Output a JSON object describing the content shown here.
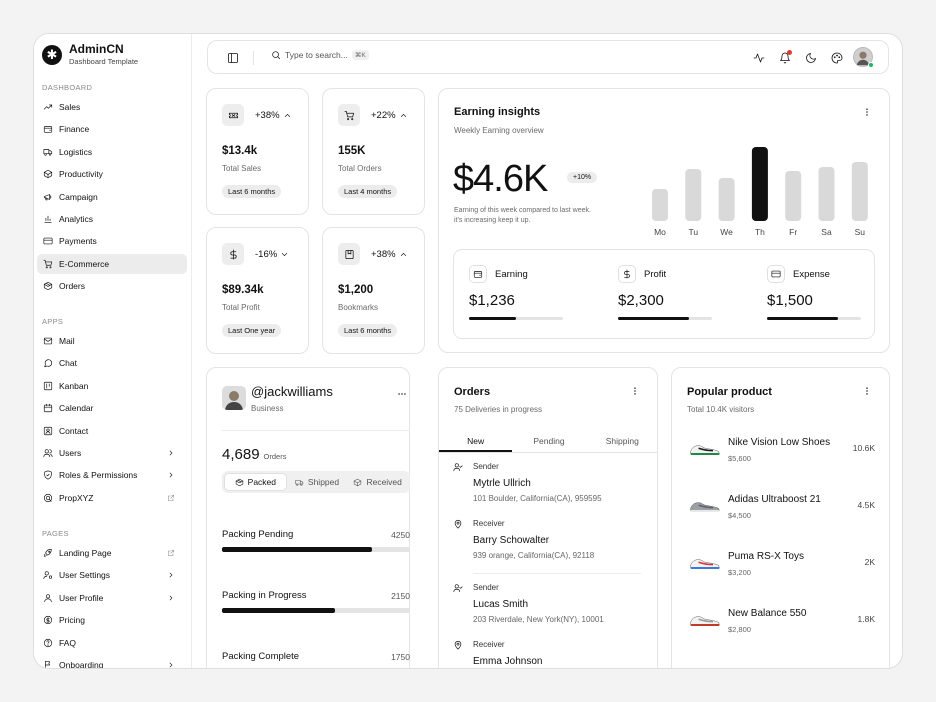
{
  "brand": {
    "name": "AdminCN",
    "subtitle": "Dashboard Template"
  },
  "sidebar": {
    "dashboard_label": "DASHBOARD",
    "dashboard_items": [
      {
        "label": "Sales",
        "icon": "trend-icon"
      },
      {
        "label": "Finance",
        "icon": "wallet-icon"
      },
      {
        "label": "Logistics",
        "icon": "truck-icon"
      },
      {
        "label": "Productivity",
        "icon": "box-icon"
      },
      {
        "label": "Campaign",
        "icon": "megaphone-icon"
      },
      {
        "label": "Analytics",
        "icon": "chart-icon"
      },
      {
        "label": "Payments",
        "icon": "card-icon"
      },
      {
        "label": "E-Commerce",
        "icon": "cart-icon",
        "active": true
      },
      {
        "label": "Orders",
        "icon": "package-icon"
      }
    ],
    "apps_label": "APPS",
    "apps_items": [
      {
        "label": "Mail",
        "icon": "mail-icon"
      },
      {
        "label": "Chat",
        "icon": "chat-icon"
      },
      {
        "label": "Kanban",
        "icon": "kanban-icon"
      },
      {
        "label": "Calendar",
        "icon": "calendar-icon"
      },
      {
        "label": "Contact",
        "icon": "contact-icon"
      },
      {
        "label": "Users",
        "icon": "users-icon",
        "chevron": true
      },
      {
        "label": "Roles & Permissions",
        "icon": "shield-icon",
        "chevron": true
      },
      {
        "label": "PropXYZ",
        "icon": "prop-icon",
        "external": true
      }
    ],
    "pages_label": "PAGES",
    "pages_items": [
      {
        "label": "Landing Page",
        "icon": "rocket-icon",
        "external": true
      },
      {
        "label": "User Settings",
        "icon": "user-settings-icon",
        "chevron": true
      },
      {
        "label": "User Profile",
        "icon": "user-icon",
        "chevron": true
      },
      {
        "label": "Pricing",
        "icon": "pricing-icon"
      },
      {
        "label": "FAQ",
        "icon": "help-icon"
      },
      {
        "label": "Onboarding",
        "icon": "onboarding-icon",
        "chevron": true
      }
    ]
  },
  "topbar": {
    "search_placeholder": "Type to search...",
    "shortcut": "⌘K"
  },
  "stats": [
    {
      "icon": "ticket-icon",
      "pct": "+38%",
      "dir": "up",
      "value": "$13.4k",
      "label": "Total Sales",
      "period": "Last 6 months"
    },
    {
      "icon": "cart-icon",
      "pct": "+22%",
      "dir": "up",
      "value": "155K",
      "label": "Total Orders",
      "period": "Last 4 months"
    },
    {
      "icon": "dollar-icon",
      "pct": "-16%",
      "dir": "down",
      "value": "$89.34k",
      "label": "Total Profit",
      "period": "Last One year"
    },
    {
      "icon": "bookmark-icon",
      "pct": "+38%",
      "dir": "up",
      "value": "$1,200",
      "label": "Bookmarks",
      "period": "Last 6 months"
    }
  ],
  "earning": {
    "title": "Earning insights",
    "subtitle": "Weekly Earning overview",
    "amount": "$4.6K",
    "badge": "+10%",
    "note_line1": "Earning of this week compared to last week.",
    "note_line2": "it's increasing keep it up.",
    "chart_data": {
      "type": "bar",
      "categories": [
        "Mo",
        "Tu",
        "We",
        "Th",
        "Fr",
        "Sa",
        "Su"
      ],
      "values": [
        32,
        52,
        43,
        74,
        50,
        54,
        59
      ],
      "highlight": "Th",
      "colors": {
        "normal": "#d9d9d9",
        "highlight": "#111111"
      }
    },
    "breakdown": [
      {
        "icon": "wallet-icon",
        "label": "Earning",
        "value": "$1,236",
        "progress": 0.5
      },
      {
        "icon": "dollar-icon",
        "label": "Profit",
        "value": "$2,300",
        "progress": 0.75
      },
      {
        "icon": "card-icon",
        "label": "Expense",
        "value": "$1,500",
        "progress": 0.75
      }
    ]
  },
  "profile": {
    "handle": "@jackwilliams",
    "role": "Business",
    "orders_value": "4,689",
    "orders_label": "Orders",
    "tabs": [
      {
        "label": "Packed",
        "icon": "package-icon",
        "active": true
      },
      {
        "label": "Shipped",
        "icon": "truck-icon"
      },
      {
        "label": "Received",
        "icon": "box-icon"
      }
    ],
    "progress": [
      {
        "label": "Packing Pending",
        "value": "4250",
        "fraction": 0.8
      },
      {
        "label": "Packing in Progress",
        "value": "2150",
        "fraction": 0.6
      },
      {
        "label": "Packing Complete",
        "value": "1750",
        "fraction": 0.5
      }
    ]
  },
  "orders": {
    "title": "Orders",
    "subtitle": "75 Deliveries in progress",
    "tabs": [
      "New",
      "Pending",
      "Shipping"
    ],
    "entries": [
      {
        "role": "Sender",
        "name": "Mytrle Ullrich",
        "address": "101 Boulder, California(CA), 959595"
      },
      {
        "role": "Receiver",
        "name": "Barry Schowalter",
        "address": "939 orange, California(CA), 92118"
      },
      {
        "role": "Sender",
        "name": "Lucas Smith",
        "address": "203 Riverdale, New York(NY), 10001"
      },
      {
        "role": "Receiver",
        "name": "Emma Johnson",
        "address": ""
      }
    ]
  },
  "popular": {
    "title": "Popular product",
    "subtitle": "Total 10.4K visitors",
    "items": [
      {
        "name": "Nike Vision Low Shoes",
        "price": "$5,600",
        "visitors": "10.6K"
      },
      {
        "name": "Adidas Ultraboost 21",
        "price": "$4,500",
        "visitors": "4.5K"
      },
      {
        "name": "Puma RS-X Toys",
        "price": "$3,200",
        "visitors": "2K"
      },
      {
        "name": "New Balance 550",
        "price": "$2,800",
        "visitors": "1.8K"
      }
    ]
  }
}
